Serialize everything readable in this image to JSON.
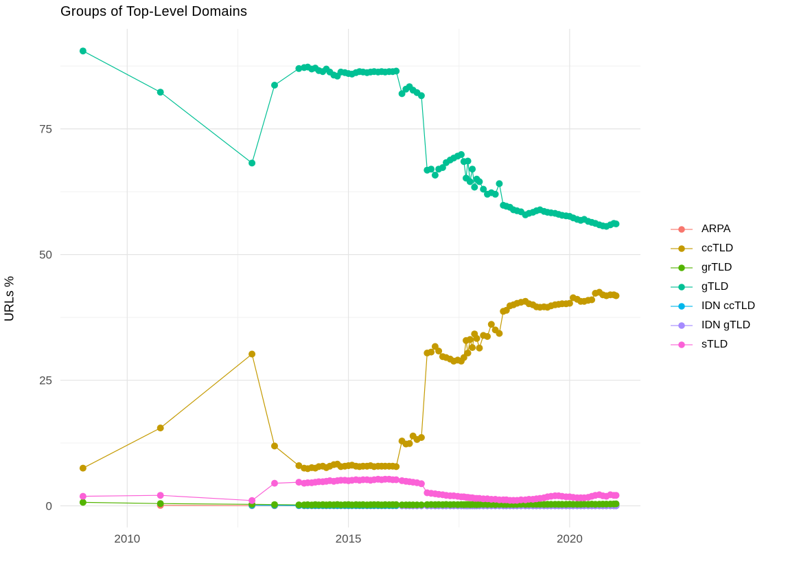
{
  "title": "Groups of Top-Level Domains",
  "chart_data": {
    "type": "line",
    "title": "Groups of Top-Level Domains",
    "xlabel": "",
    "ylabel": "URLs %",
    "xlim": [
      2008.49,
      2021.6
    ],
    "ylim": [
      -4.3,
      94.9
    ],
    "xticks": [
      2010,
      2015,
      2020
    ],
    "yticks": [
      0,
      25,
      50,
      75
    ],
    "minor_xticks": [
      2012.5,
      2017.5
    ],
    "minor_yticks": [
      12.5,
      37.5,
      62.5,
      87.5
    ],
    "grid": true,
    "legend_position": "right",
    "point_draw_order": [
      0,
      1,
      4,
      5,
      2,
      3,
      6
    ],
    "x": [
      2009.0,
      2010.75,
      2012.82,
      2013.33,
      2013.88,
      2014.0,
      2014.08,
      2014.17,
      2014.25,
      2014.33,
      2014.42,
      2014.5,
      2014.58,
      2014.67,
      2014.75,
      2014.83,
      2014.92,
      2015.0,
      2015.08,
      2015.17,
      2015.25,
      2015.33,
      2015.42,
      2015.5,
      2015.58,
      2015.67,
      2015.75,
      2015.83,
      2015.92,
      2016.0,
      2016.08,
      2016.21,
      2016.3,
      2016.38,
      2016.46,
      2016.55,
      2016.65,
      2016.78,
      2016.87,
      2016.96,
      2017.04,
      2017.13,
      2017.21,
      2017.3,
      2017.38,
      2017.47,
      2017.55,
      2017.61,
      2017.66,
      2017.7,
      2017.75,
      2017.8,
      2017.85,
      2017.9,
      2017.96,
      2018.05,
      2018.14,
      2018.23,
      2018.32,
      2018.41,
      2018.5,
      2018.57,
      2018.65,
      2018.73,
      2018.81,
      2018.9,
      2019.0,
      2019.08,
      2019.17,
      2019.25,
      2019.33,
      2019.42,
      2019.5,
      2019.58,
      2019.67,
      2019.75,
      2019.83,
      2019.92,
      2020.0,
      2020.08,
      2020.17,
      2020.25,
      2020.33,
      2020.42,
      2020.5,
      2020.58,
      2020.67,
      2020.75,
      2020.83,
      2020.92,
      2021.0,
      2021.05
    ],
    "series": [
      {
        "name": "ARPA",
        "color": "#F8766D",
        "values": [
          null,
          0.1,
          0.04,
          0.03,
          0.03,
          0.02,
          0.02,
          0.02,
          0.02,
          0.02,
          0.02,
          0.02,
          0.02,
          0.02,
          0.02,
          0.02,
          0.02,
          0.02,
          0.02,
          0.02,
          0.02,
          0.02,
          0.02,
          0.02,
          0.02,
          0.02,
          0.02,
          0.02,
          0.02,
          0.02,
          0.02,
          0.02,
          0.02,
          0.02,
          0.02,
          0.02,
          0.02,
          0.02,
          0.02,
          0.02,
          0.02,
          0.02,
          0.02,
          0.02,
          0.02,
          0.02,
          0.02,
          0.02,
          0.02,
          0.02,
          0.02,
          0.02,
          0.02,
          0.02,
          0.02,
          0.02,
          0.02,
          0.02,
          0.02,
          0.02,
          0.02,
          0.02,
          0.02,
          0.02,
          0.02,
          0.02,
          0.02,
          0.02,
          0.02,
          0.02,
          0.02,
          0.02,
          0.02,
          0.02,
          0.02,
          0.02,
          0.02,
          0.02,
          0.02,
          0.02,
          0.02,
          0.02,
          0.02,
          0.02,
          0.02,
          0.02,
          0.02,
          0.02,
          0.02,
          0.02,
          0.02,
          0.02
        ]
      },
      {
        "name": "ccTLD",
        "color": "#C49A00",
        "values": [
          7.5,
          15.5,
          30.2,
          11.9,
          8.0,
          7.5,
          7.4,
          7.6,
          7.5,
          7.8,
          7.9,
          7.6,
          7.9,
          8.2,
          8.3,
          7.8,
          7.9,
          8.0,
          8.1,
          7.9,
          7.8,
          7.9,
          7.9,
          8.0,
          7.8,
          7.9,
          7.9,
          7.9,
          7.9,
          7.9,
          7.8,
          12.9,
          12.3,
          12.4,
          13.9,
          13.2,
          13.6,
          30.4,
          30.6,
          31.7,
          30.8,
          29.7,
          29.5,
          29.2,
          28.8,
          29.0,
          28.8,
          29.5,
          32.9,
          30.4,
          33.1,
          31.5,
          34.2,
          33.3,
          31.4,
          33.9,
          33.7,
          36.1,
          35.0,
          34.3,
          38.7,
          38.9,
          39.8,
          40.0,
          40.3,
          40.5,
          40.7,
          40.2,
          40.0,
          39.6,
          39.5,
          39.6,
          39.5,
          39.8,
          40.0,
          40.1,
          40.2,
          40.2,
          40.3,
          41.4,
          41.1,
          40.7,
          40.7,
          40.9,
          41.0,
          42.3,
          42.5,
          42.0,
          41.8,
          42.0,
          42.0,
          41.8
        ]
      },
      {
        "name": "grTLD",
        "color": "#53B400",
        "values": [
          0.7,
          0.45,
          0.3,
          0.25,
          0.2,
          0.2,
          0.22,
          0.18,
          0.25,
          0.2,
          0.23,
          0.19,
          0.24,
          0.21,
          0.26,
          0.2,
          0.22,
          0.25,
          0.2,
          0.23,
          0.21,
          0.24,
          0.2,
          0.22,
          0.25,
          0.23,
          0.2,
          0.24,
          0.22,
          0.25,
          0.23,
          0.2,
          0.2,
          0.2,
          0.2,
          0.2,
          0.2,
          0.25,
          0.27,
          0.24,
          0.26,
          0.25,
          0.28,
          0.25,
          0.26,
          0.24,
          0.27,
          0.25,
          0.26,
          0.28,
          0.25,
          0.27,
          0.26,
          0.25,
          0.27,
          0.28,
          0.26,
          0.27,
          0.25,
          0.28,
          0.26,
          0.27,
          0.28,
          0.26,
          0.28,
          0.3,
          0.28,
          0.3,
          0.29,
          0.31,
          0.3,
          0.28,
          0.3,
          0.31,
          0.3,
          0.32,
          0.3,
          0.31,
          0.33,
          0.3,
          0.32,
          0.31,
          0.33,
          0.32,
          0.34,
          0.32,
          0.33,
          0.35,
          0.34,
          0.36,
          0.38,
          0.4
        ]
      },
      {
        "name": "gTLD",
        "color": "#00C094",
        "values": [
          90.5,
          82.3,
          68.2,
          83.7,
          87.0,
          87.2,
          87.3,
          86.9,
          87.1,
          86.6,
          86.4,
          86.9,
          86.3,
          85.7,
          85.5,
          86.3,
          86.2,
          86.0,
          85.9,
          86.2,
          86.4,
          86.3,
          86.2,
          86.3,
          86.4,
          86.3,
          86.4,
          86.3,
          86.4,
          86.4,
          86.5,
          82.0,
          82.9,
          83.4,
          82.7,
          82.2,
          81.6,
          66.8,
          67.0,
          65.8,
          67.0,
          67.3,
          68.3,
          68.8,
          69.2,
          69.6,
          69.9,
          68.5,
          65.2,
          68.6,
          64.5,
          67.0,
          63.4,
          65.0,
          64.5,
          63.0,
          62.0,
          62.3,
          62.0,
          64.1,
          59.8,
          59.6,
          59.4,
          58.9,
          58.7,
          58.5,
          57.9,
          58.2,
          58.4,
          58.7,
          58.9,
          58.6,
          58.4,
          58.3,
          58.2,
          58.0,
          57.8,
          57.7,
          57.6,
          57.3,
          57.0,
          56.8,
          57.0,
          56.6,
          56.4,
          56.2,
          55.9,
          55.7,
          55.6,
          55.9,
          56.2,
          56.1
        ]
      },
      {
        "name": "IDN ccTLD",
        "color": "#00B6EB",
        "values": [
          null,
          null,
          0.1,
          0.08,
          0.06,
          0.06,
          0.06,
          0.06,
          0.06,
          0.06,
          0.06,
          0.06,
          0.06,
          0.06,
          0.06,
          0.06,
          0.06,
          0.06,
          0.06,
          0.06,
          0.06,
          0.06,
          0.06,
          0.06,
          0.06,
          0.06,
          0.06,
          0.06,
          0.06,
          0.06,
          0.06,
          0.05,
          0.05,
          0.05,
          0.05,
          0.05,
          0.05,
          0.05,
          0.05,
          0.05,
          0.05,
          0.05,
          0.05,
          0.05,
          0.05,
          0.05,
          0.05,
          0.05,
          0.05,
          0.05,
          0.05,
          0.05,
          0.05,
          0.05,
          0.05,
          0.05,
          0.05,
          0.05,
          0.05,
          0.05,
          0.05,
          0.05,
          0.05,
          0.05,
          0.05,
          0.05,
          0.05,
          0.05,
          0.05,
          0.05,
          0.05,
          0.05,
          0.05,
          0.05,
          0.05,
          0.05,
          0.05,
          0.05,
          0.05,
          0.05,
          0.05,
          0.05,
          0.05,
          0.05,
          0.05,
          0.05,
          0.05,
          0.05,
          0.05,
          0.05,
          0.05,
          0.05
        ]
      },
      {
        "name": "IDN gTLD",
        "color": "#A58AFF",
        "values": [
          null,
          null,
          null,
          null,
          null,
          null,
          null,
          null,
          null,
          null,
          null,
          null,
          null,
          null,
          null,
          null,
          null,
          null,
          null,
          null,
          null,
          null,
          null,
          null,
          null,
          null,
          null,
          null,
          null,
          null,
          null,
          0.04,
          0.04,
          0.03,
          0.03,
          0.03,
          0.03,
          0.03,
          0.03,
          0.03,
          0.03,
          0.03,
          0.03,
          0.03,
          0.03,
          0.03,
          0.03,
          0.03,
          0.03,
          0.03,
          0.03,
          0.03,
          0.03,
          0.03,
          0.03,
          0.03,
          0.03,
          0.03,
          0.03,
          0.03,
          0.03,
          0.03,
          0.03,
          0.03,
          0.03,
          0.03,
          0.03,
          0.03,
          0.03,
          0.03,
          0.03,
          0.03,
          0.03,
          0.03,
          0.03,
          0.03,
          0.03,
          0.03,
          0.03,
          0.03,
          0.03,
          0.03,
          0.03,
          0.03,
          0.03,
          0.03,
          0.03,
          0.03,
          0.03,
          0.03,
          0.03,
          0.03
        ]
      },
      {
        "name": "sTLD",
        "color": "#FB61D7",
        "values": [
          1.9,
          2.1,
          1.05,
          4.5,
          4.7,
          4.5,
          4.6,
          4.6,
          4.7,
          4.8,
          4.8,
          4.9,
          5.0,
          4.9,
          5.0,
          5.1,
          5.1,
          5.0,
          5.1,
          5.2,
          5.1,
          5.2,
          5.2,
          5.1,
          5.2,
          5.3,
          5.2,
          5.3,
          5.3,
          5.2,
          5.2,
          5.0,
          4.9,
          4.8,
          4.7,
          4.6,
          4.4,
          2.6,
          2.5,
          2.4,
          2.3,
          2.2,
          2.1,
          2.0,
          2.0,
          1.9,
          1.8,
          1.8,
          1.7,
          1.7,
          1.6,
          1.6,
          1.5,
          1.5,
          1.5,
          1.4,
          1.4,
          1.3,
          1.3,
          1.2,
          1.2,
          1.2,
          1.1,
          1.1,
          1.1,
          1.2,
          1.2,
          1.3,
          1.3,
          1.4,
          1.5,
          1.6,
          1.8,
          1.9,
          2.0,
          2.0,
          1.9,
          1.8,
          1.8,
          1.7,
          1.6,
          1.6,
          1.6,
          1.7,
          1.9,
          2.1,
          2.2,
          2.0,
          1.9,
          2.2,
          2.1,
          2.1
        ]
      }
    ]
  },
  "style": {
    "grid_major_color": "#E4E4E4",
    "grid_minor_color": "#F0F0F0",
    "tick_label_color": "#4D4D4D",
    "background": "#FFFFFF"
  }
}
